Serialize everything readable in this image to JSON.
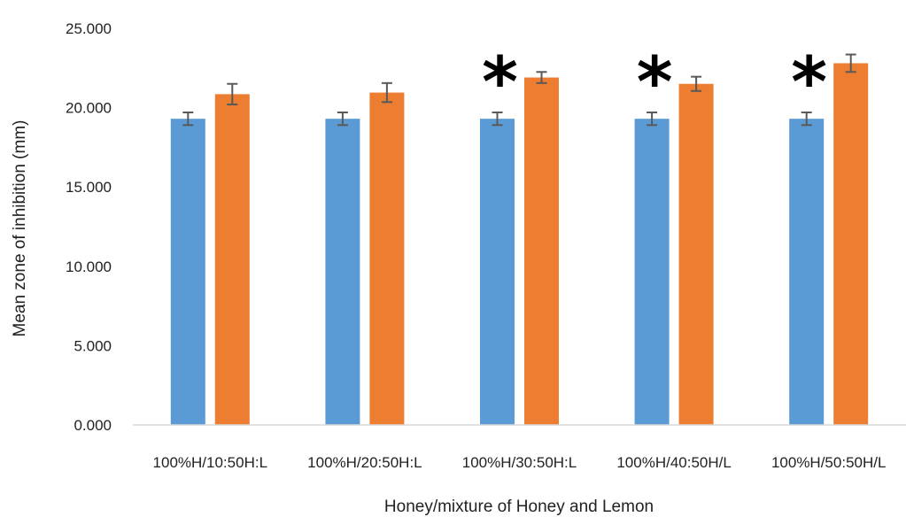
{
  "chart_data": {
    "type": "bar",
    "title": "",
    "xlabel": "Honey/mixture of Honey and Lemon",
    "ylabel": "Mean zone of inhibition (mm)",
    "ylim": [
      0,
      25
    ],
    "yticks": [
      "0.000",
      "5.000",
      "10.000",
      "15.000",
      "20.000",
      "25.000"
    ],
    "grid": false,
    "legend": "none",
    "categories": [
      "100%H/10:50H:L",
      "100%H/20:50H:L",
      "100%H/30:50H:L",
      "100%H/40:50H/L",
      "100%H/50:50H/L"
    ],
    "series": [
      {
        "color": "#5B9BD5",
        "values": [
          19.3,
          19.3,
          19.3,
          19.3,
          19.3
        ],
        "errors": [
          0.4,
          0.4,
          0.4,
          0.4,
          0.4
        ]
      },
      {
        "color": "#ED7D31",
        "values": [
          20.85,
          20.95,
          21.9,
          21.5,
          22.8
        ],
        "errors": [
          0.65,
          0.6,
          0.35,
          0.45,
          0.55
        ]
      }
    ],
    "annotations": [
      {
        "category_index": 2,
        "text": "*"
      },
      {
        "category_index": 3,
        "text": "*"
      },
      {
        "category_index": 4,
        "text": "*"
      }
    ],
    "error_bar_color": "#595959",
    "axis_color": "#d9d9d9"
  }
}
